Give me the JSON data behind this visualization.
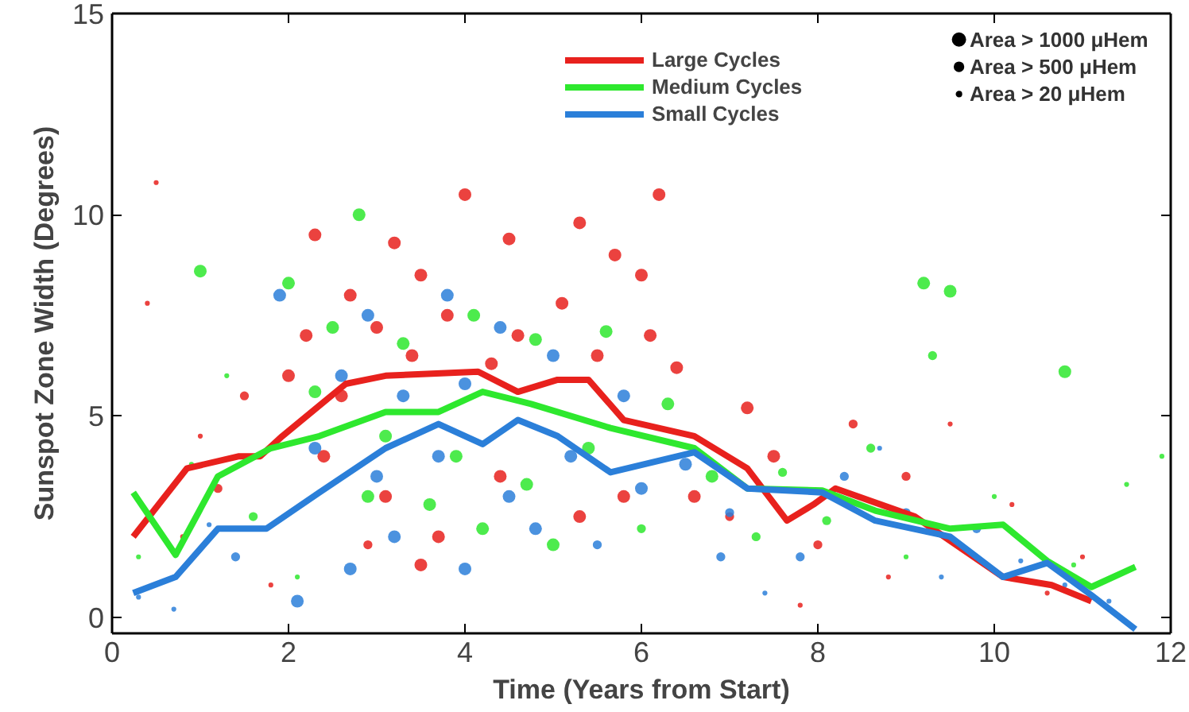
{
  "chart_data": {
    "type": "line",
    "xlabel": "Time (Years from Start)",
    "ylabel": "Sunspot Zone Width (Degrees)",
    "xlim": [
      0,
      12
    ],
    "ylim": [
      -0.4,
      15
    ],
    "xticks": [
      0,
      2,
      4,
      6,
      8,
      10,
      12
    ],
    "yticks": [
      0,
      5,
      10,
      15
    ],
    "grid": false,
    "legend": "top right",
    "line_style": "solid",
    "size_legend": [
      {
        "value": 1000,
        "label": "Area > 1000 μHem"
      },
      {
        "value": 500,
        "label": "Area > 500 μHem"
      },
      {
        "value": 150,
        "label": "Area > 20 μHem"
      }
    ],
    "series": [
      {
        "type": "bubble",
        "marker": "circle",
        "color": "#e8211d",
        "x": [
          2.3,
          3.2,
          4.0,
          6.2,
          4.5,
          5.3,
          2.7,
          3.5,
          5.7,
          6.0,
          2.2,
          3.0,
          3.8,
          4.6,
          5.1,
          6.1,
          2.0,
          2.6,
          3.4,
          4.3,
          5.5,
          6.4,
          2.4,
          3.1,
          3.7,
          3.5,
          4.4,
          5.3,
          5.8,
          6.6,
          7.2,
          7.5,
          8.0,
          8.4,
          9.0,
          1.2,
          1.5,
          0.4,
          0.5,
          1.0,
          0.8,
          9.5,
          10.2,
          11.0,
          8.8,
          7.8,
          1.8,
          10.6,
          7.0,
          2.9
        ],
        "values": [
          9.5,
          9.3,
          10.5,
          10.5,
          9.4,
          9.8,
          8.0,
          8.5,
          9.0,
          8.5,
          7.0,
          7.2,
          7.5,
          7.0,
          7.8,
          7.0,
          6.0,
          5.5,
          6.5,
          6.3,
          6.5,
          6.2,
          4.0,
          3.0,
          2.0,
          1.3,
          3.5,
          2.5,
          3.0,
          3.0,
          5.2,
          4.0,
          1.8,
          4.8,
          3.5,
          3.2,
          5.5,
          7.8,
          10.8,
          4.5,
          2.0,
          4.8,
          2.8,
          1.5,
          1.0,
          0.3,
          0.8,
          0.6,
          2.5,
          1.8
        ],
        "sizes": [
          1000,
          1000,
          1000,
          1000,
          1000,
          1000,
          1000,
          1000,
          1000,
          1000,
          1000,
          1000,
          1000,
          1000,
          1000,
          1000,
          1000,
          1000,
          1000,
          1000,
          1000,
          1000,
          1000,
          1000,
          1000,
          1000,
          1000,
          1000,
          1000,
          1000,
          1000,
          1000,
          500,
          500,
          500,
          500,
          500,
          150,
          150,
          150,
          150,
          150,
          150,
          150,
          150,
          150,
          150,
          150,
          500,
          500
        ]
      },
      {
        "type": "bubble",
        "marker": "circle",
        "color": "#2ee82e",
        "x": [
          2.0,
          2.8,
          9.2,
          9.5,
          10.8,
          2.5,
          3.3,
          4.1,
          4.8,
          5.6,
          2.3,
          3.1,
          3.9,
          4.7,
          5.4,
          6.3,
          2.9,
          3.6,
          4.2,
          5.0,
          6.8,
          7.6,
          8.1,
          9.3,
          8.6,
          1.6,
          1.0,
          0.3,
          0.9,
          1.3,
          10.0,
          10.9,
          11.5,
          9.0,
          7.3,
          6.0,
          2.1,
          11.9
        ],
        "values": [
          8.3,
          10.0,
          8.3,
          8.1,
          6.1,
          7.2,
          6.8,
          7.5,
          6.9,
          7.1,
          5.6,
          4.5,
          4.0,
          3.3,
          4.2,
          5.3,
          3.0,
          2.8,
          2.2,
          1.8,
          3.5,
          3.6,
          2.4,
          6.5,
          4.2,
          2.5,
          8.6,
          1.5,
          3.8,
          6.0,
          3.0,
          1.3,
          3.3,
          1.5,
          2.0,
          2.2,
          1.0,
          4.0
        ],
        "sizes": [
          1000,
          1000,
          1000,
          1000,
          1000,
          1000,
          1000,
          1000,
          1000,
          1000,
          1000,
          1000,
          1000,
          1000,
          1000,
          1000,
          1000,
          1000,
          1000,
          1000,
          1000,
          500,
          500,
          500,
          500,
          500,
          1000,
          150,
          150,
          150,
          150,
          150,
          150,
          150,
          500,
          500,
          150,
          150
        ]
      },
      {
        "type": "bubble",
        "marker": "circle",
        "color": "#2b7fd9",
        "x": [
          1.9,
          3.8,
          2.9,
          4.4,
          5.0,
          2.6,
          3.3,
          4.0,
          5.8,
          2.3,
          3.0,
          3.7,
          4.5,
          5.2,
          6.0,
          6.5,
          3.2,
          4.0,
          4.8,
          2.7,
          2.1,
          7.0,
          7.8,
          8.3,
          9.0,
          9.8,
          1.4,
          0.3,
          0.7,
          1.1,
          10.3,
          10.8,
          11.3,
          9.4,
          8.7,
          6.9,
          5.5,
          7.4
        ],
        "values": [
          8.0,
          8.0,
          7.5,
          7.2,
          6.5,
          6.0,
          5.5,
          5.8,
          5.5,
          4.2,
          3.5,
          4.0,
          3.0,
          4.0,
          3.2,
          3.8,
          2.0,
          1.2,
          2.2,
          1.2,
          0.4,
          2.6,
          1.5,
          3.5,
          2.6,
          2.2,
          1.5,
          0.5,
          0.2,
          2.3,
          1.4,
          0.8,
          0.4,
          1.0,
          4.2,
          1.5,
          1.8,
          0.6
        ],
        "sizes": [
          1000,
          1000,
          1000,
          1000,
          1000,
          1000,
          1000,
          1000,
          1000,
          1000,
          1000,
          1000,
          1000,
          1000,
          1000,
          1000,
          1000,
          1000,
          1000,
          1000,
          1000,
          500,
          500,
          500,
          500,
          500,
          500,
          150,
          150,
          150,
          150,
          150,
          150,
          150,
          150,
          500,
          500,
          150
        ]
      },
      {
        "name": "Large Cycles",
        "color": "#e8211d",
        "x": [
          0.24,
          0.85,
          1.44,
          1.68,
          1.93,
          2.65,
          3.1,
          4.15,
          4.6,
          5.05,
          5.4,
          5.8,
          6.6,
          7.2,
          7.65,
          7.95,
          8.2,
          9.1,
          10.1,
          10.65,
          11.1
        ],
        "values": [
          2.0,
          3.7,
          4.0,
          4.0,
          4.5,
          5.8,
          6.0,
          6.1,
          5.6,
          5.9,
          5.9,
          4.9,
          4.5,
          3.7,
          2.4,
          2.8,
          3.2,
          2.5,
          1.0,
          0.8,
          0.4
        ]
      },
      {
        "name": "Medium Cycles",
        "color": "#2ee82e",
        "x": [
          0.24,
          0.72,
          1.2,
          1.8,
          2.35,
          3.1,
          3.7,
          4.2,
          4.75,
          5.65,
          6.6,
          7.2,
          8.05,
          8.65,
          9.5,
          10.1,
          10.6,
          11.1,
          11.6
        ],
        "values": [
          3.1,
          1.55,
          3.5,
          4.2,
          4.5,
          5.1,
          5.1,
          5.6,
          5.3,
          4.7,
          4.2,
          3.2,
          3.15,
          2.65,
          2.2,
          2.3,
          1.4,
          0.75,
          1.25
        ]
      },
      {
        "name": "Small Cycles",
        "color": "#2b7fd9",
        "x": [
          0.24,
          0.72,
          1.2,
          1.75,
          2.35,
          3.1,
          3.7,
          4.2,
          4.6,
          5.05,
          5.65,
          6.6,
          7.2,
          8.05,
          8.65,
          9.5,
          10.1,
          10.6,
          11.1,
          11.6
        ],
        "values": [
          0.6,
          1.0,
          2.2,
          2.2,
          3.1,
          4.2,
          4.8,
          4.3,
          4.9,
          4.5,
          3.6,
          4.1,
          3.2,
          3.1,
          2.4,
          2.0,
          1.0,
          1.35,
          0.55,
          -0.3
        ]
      }
    ]
  }
}
